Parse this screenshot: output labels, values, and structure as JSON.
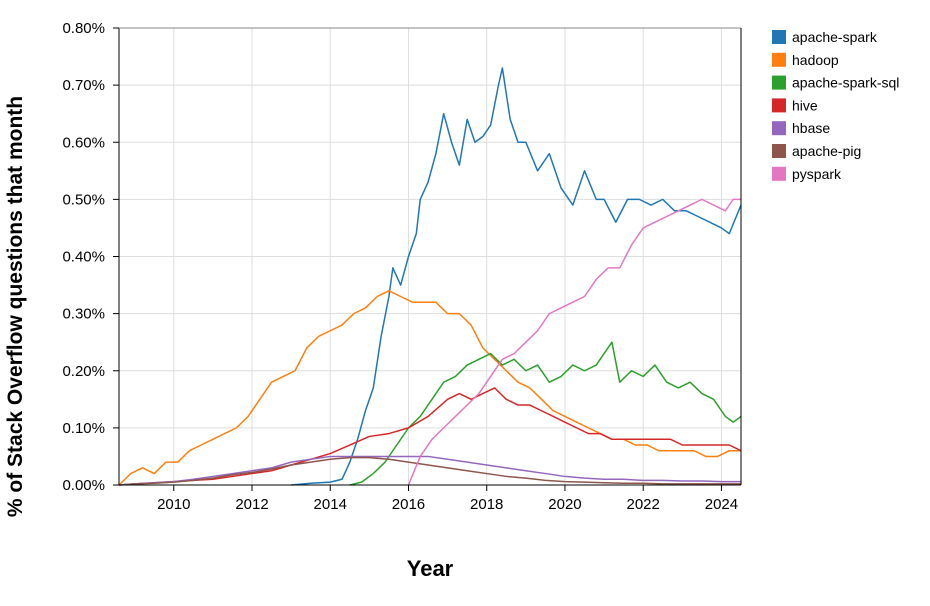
{
  "chart_data": {
    "type": "line",
    "title": "",
    "xlabel": "Year",
    "ylabel": "% of Stack Overflow questions that month",
    "xlim": [
      2008.6,
      2024.5
    ],
    "ylim": [
      0,
      0.8
    ],
    "x_ticks": [
      2010,
      2012,
      2014,
      2016,
      2018,
      2020,
      2022,
      2024
    ],
    "x_tick_labels": [
      "2010",
      "2012",
      "2014",
      "2016",
      "2018",
      "2020",
      "2022",
      "2024"
    ],
    "y_ticks": [
      0,
      0.1,
      0.2,
      0.3,
      0.4,
      0.5,
      0.6,
      0.7,
      0.8
    ],
    "y_tick_labels": [
      "0.00%",
      "0.10%",
      "0.20%",
      "0.30%",
      "0.40%",
      "0.50%",
      "0.60%",
      "0.70%",
      "0.80%"
    ],
    "grid": true,
    "legend_position": "right-outside",
    "series": [
      {
        "name": "apache-spark",
        "color": "#1f77b4",
        "points": [
          [
            2013.0,
            0.0
          ],
          [
            2013.5,
            0.003
          ],
          [
            2014.0,
            0.005
          ],
          [
            2014.3,
            0.01
          ],
          [
            2014.5,
            0.04
          ],
          [
            2014.7,
            0.08
          ],
          [
            2014.9,
            0.13
          ],
          [
            2015.1,
            0.17
          ],
          [
            2015.3,
            0.26
          ],
          [
            2015.5,
            0.33
          ],
          [
            2015.6,
            0.38
          ],
          [
            2015.8,
            0.35
          ],
          [
            2016.0,
            0.4
          ],
          [
            2016.2,
            0.44
          ],
          [
            2016.3,
            0.5
          ],
          [
            2016.5,
            0.53
          ],
          [
            2016.7,
            0.58
          ],
          [
            2016.9,
            0.65
          ],
          [
            2017.1,
            0.6
          ],
          [
            2017.3,
            0.56
          ],
          [
            2017.5,
            0.64
          ],
          [
            2017.7,
            0.6
          ],
          [
            2017.9,
            0.61
          ],
          [
            2018.1,
            0.63
          ],
          [
            2018.3,
            0.7
          ],
          [
            2018.4,
            0.73
          ],
          [
            2018.6,
            0.64
          ],
          [
            2018.8,
            0.6
          ],
          [
            2019.0,
            0.6
          ],
          [
            2019.3,
            0.55
          ],
          [
            2019.6,
            0.58
          ],
          [
            2019.9,
            0.52
          ],
          [
            2020.2,
            0.49
          ],
          [
            2020.5,
            0.55
          ],
          [
            2020.8,
            0.5
          ],
          [
            2021.0,
            0.5
          ],
          [
            2021.3,
            0.46
          ],
          [
            2021.6,
            0.5
          ],
          [
            2021.9,
            0.5
          ],
          [
            2022.2,
            0.49
          ],
          [
            2022.5,
            0.5
          ],
          [
            2022.8,
            0.48
          ],
          [
            2023.1,
            0.48
          ],
          [
            2023.4,
            0.47
          ],
          [
            2023.7,
            0.46
          ],
          [
            2024.0,
            0.45
          ],
          [
            2024.2,
            0.44
          ],
          [
            2024.5,
            0.49
          ]
        ]
      },
      {
        "name": "hadoop",
        "color": "#ff7f0e",
        "points": [
          [
            2008.6,
            0.0
          ],
          [
            2008.9,
            0.02
          ],
          [
            2009.2,
            0.03
          ],
          [
            2009.5,
            0.02
          ],
          [
            2009.8,
            0.04
          ],
          [
            2010.1,
            0.04
          ],
          [
            2010.4,
            0.06
          ],
          [
            2010.7,
            0.07
          ],
          [
            2011.0,
            0.08
          ],
          [
            2011.3,
            0.09
          ],
          [
            2011.6,
            0.1
          ],
          [
            2011.9,
            0.12
          ],
          [
            2012.2,
            0.15
          ],
          [
            2012.5,
            0.18
          ],
          [
            2012.8,
            0.19
          ],
          [
            2013.1,
            0.2
          ],
          [
            2013.4,
            0.24
          ],
          [
            2013.7,
            0.26
          ],
          [
            2014.0,
            0.27
          ],
          [
            2014.3,
            0.28
          ],
          [
            2014.6,
            0.3
          ],
          [
            2014.9,
            0.31
          ],
          [
            2015.2,
            0.33
          ],
          [
            2015.5,
            0.34
          ],
          [
            2015.8,
            0.33
          ],
          [
            2016.1,
            0.32
          ],
          [
            2016.4,
            0.32
          ],
          [
            2016.7,
            0.32
          ],
          [
            2017.0,
            0.3
          ],
          [
            2017.3,
            0.3
          ],
          [
            2017.6,
            0.28
          ],
          [
            2017.9,
            0.24
          ],
          [
            2018.2,
            0.22
          ],
          [
            2018.5,
            0.2
          ],
          [
            2018.8,
            0.18
          ],
          [
            2019.1,
            0.17
          ],
          [
            2019.4,
            0.15
          ],
          [
            2019.7,
            0.13
          ],
          [
            2020.0,
            0.12
          ],
          [
            2020.3,
            0.11
          ],
          [
            2020.6,
            0.1
          ],
          [
            2020.9,
            0.09
          ],
          [
            2021.2,
            0.08
          ],
          [
            2021.5,
            0.08
          ],
          [
            2021.8,
            0.07
          ],
          [
            2022.1,
            0.07
          ],
          [
            2022.4,
            0.06
          ],
          [
            2022.7,
            0.06
          ],
          [
            2023.0,
            0.06
          ],
          [
            2023.3,
            0.06
          ],
          [
            2023.6,
            0.05
          ],
          [
            2023.9,
            0.05
          ],
          [
            2024.2,
            0.06
          ],
          [
            2024.5,
            0.06
          ]
        ]
      },
      {
        "name": "apache-spark-sql",
        "color": "#2ca02c",
        "points": [
          [
            2014.5,
            0.0
          ],
          [
            2014.8,
            0.005
          ],
          [
            2015.1,
            0.02
          ],
          [
            2015.4,
            0.04
          ],
          [
            2015.7,
            0.07
          ],
          [
            2016.0,
            0.1
          ],
          [
            2016.3,
            0.12
          ],
          [
            2016.6,
            0.15
          ],
          [
            2016.9,
            0.18
          ],
          [
            2017.2,
            0.19
          ],
          [
            2017.5,
            0.21
          ],
          [
            2017.8,
            0.22
          ],
          [
            2018.1,
            0.23
          ],
          [
            2018.4,
            0.21
          ],
          [
            2018.7,
            0.22
          ],
          [
            2019.0,
            0.2
          ],
          [
            2019.3,
            0.21
          ],
          [
            2019.6,
            0.18
          ],
          [
            2019.9,
            0.19
          ],
          [
            2020.2,
            0.21
          ],
          [
            2020.5,
            0.2
          ],
          [
            2020.8,
            0.21
          ],
          [
            2021.0,
            0.23
          ],
          [
            2021.2,
            0.25
          ],
          [
            2021.4,
            0.18
          ],
          [
            2021.7,
            0.2
          ],
          [
            2022.0,
            0.19
          ],
          [
            2022.3,
            0.21
          ],
          [
            2022.6,
            0.18
          ],
          [
            2022.9,
            0.17
          ],
          [
            2023.2,
            0.18
          ],
          [
            2023.5,
            0.16
          ],
          [
            2023.8,
            0.15
          ],
          [
            2024.1,
            0.12
          ],
          [
            2024.3,
            0.11
          ],
          [
            2024.5,
            0.12
          ]
        ]
      },
      {
        "name": "hive",
        "color": "#d62728",
        "points": [
          [
            2008.6,
            0.0
          ],
          [
            2009.0,
            0.002
          ],
          [
            2009.5,
            0.004
          ],
          [
            2010.0,
            0.006
          ],
          [
            2010.5,
            0.008
          ],
          [
            2011.0,
            0.01
          ],
          [
            2011.5,
            0.015
          ],
          [
            2012.0,
            0.02
          ],
          [
            2012.5,
            0.025
          ],
          [
            2013.0,
            0.035
          ],
          [
            2013.5,
            0.045
          ],
          [
            2014.0,
            0.055
          ],
          [
            2014.5,
            0.07
          ],
          [
            2015.0,
            0.085
          ],
          [
            2015.5,
            0.09
          ],
          [
            2016.0,
            0.1
          ],
          [
            2016.5,
            0.12
          ],
          [
            2017.0,
            0.15
          ],
          [
            2017.3,
            0.16
          ],
          [
            2017.6,
            0.15
          ],
          [
            2017.9,
            0.16
          ],
          [
            2018.2,
            0.17
          ],
          [
            2018.5,
            0.15
          ],
          [
            2018.8,
            0.14
          ],
          [
            2019.1,
            0.14
          ],
          [
            2019.4,
            0.13
          ],
          [
            2019.7,
            0.12
          ],
          [
            2020.0,
            0.11
          ],
          [
            2020.3,
            0.1
          ],
          [
            2020.6,
            0.09
          ],
          [
            2020.9,
            0.09
          ],
          [
            2021.2,
            0.08
          ],
          [
            2021.5,
            0.08
          ],
          [
            2021.8,
            0.08
          ],
          [
            2022.1,
            0.08
          ],
          [
            2022.4,
            0.08
          ],
          [
            2022.7,
            0.08
          ],
          [
            2023.0,
            0.07
          ],
          [
            2023.3,
            0.07
          ],
          [
            2023.6,
            0.07
          ],
          [
            2023.9,
            0.07
          ],
          [
            2024.2,
            0.07
          ],
          [
            2024.5,
            0.06
          ]
        ]
      },
      {
        "name": "hbase",
        "color": "#9467bd",
        "points": [
          [
            2008.6,
            0.0
          ],
          [
            2009.0,
            0.002
          ],
          [
            2009.5,
            0.004
          ],
          [
            2010.0,
            0.006
          ],
          [
            2010.5,
            0.01
          ],
          [
            2011.0,
            0.015
          ],
          [
            2011.5,
            0.02
          ],
          [
            2012.0,
            0.025
          ],
          [
            2012.5,
            0.03
          ],
          [
            2013.0,
            0.04
          ],
          [
            2013.5,
            0.045
          ],
          [
            2014.0,
            0.05
          ],
          [
            2014.5,
            0.05
          ],
          [
            2015.0,
            0.05
          ],
          [
            2015.5,
            0.05
          ],
          [
            2016.0,
            0.05
          ],
          [
            2016.5,
            0.05
          ],
          [
            2017.0,
            0.045
          ],
          [
            2017.5,
            0.04
          ],
          [
            2018.0,
            0.035
          ],
          [
            2018.5,
            0.03
          ],
          [
            2019.0,
            0.025
          ],
          [
            2019.5,
            0.02
          ],
          [
            2020.0,
            0.015
          ],
          [
            2020.5,
            0.012
          ],
          [
            2021.0,
            0.01
          ],
          [
            2021.5,
            0.01
          ],
          [
            2022.0,
            0.008
          ],
          [
            2022.5,
            0.008
          ],
          [
            2023.0,
            0.007
          ],
          [
            2023.5,
            0.007
          ],
          [
            2024.0,
            0.006
          ],
          [
            2024.5,
            0.006
          ]
        ]
      },
      {
        "name": "apache-pig",
        "color": "#8c564b",
        "points": [
          [
            2008.6,
            0.0
          ],
          [
            2009.0,
            0.002
          ],
          [
            2009.5,
            0.003
          ],
          [
            2010.0,
            0.005
          ],
          [
            2010.5,
            0.008
          ],
          [
            2011.0,
            0.012
          ],
          [
            2011.5,
            0.018
          ],
          [
            2012.0,
            0.022
          ],
          [
            2012.5,
            0.028
          ],
          [
            2013.0,
            0.035
          ],
          [
            2013.5,
            0.04
          ],
          [
            2014.0,
            0.045
          ],
          [
            2014.5,
            0.048
          ],
          [
            2015.0,
            0.048
          ],
          [
            2015.5,
            0.045
          ],
          [
            2016.0,
            0.04
          ],
          [
            2016.5,
            0.035
          ],
          [
            2017.0,
            0.03
          ],
          [
            2017.5,
            0.025
          ],
          [
            2018.0,
            0.02
          ],
          [
            2018.5,
            0.015
          ],
          [
            2019.0,
            0.012
          ],
          [
            2019.5,
            0.008
          ],
          [
            2020.0,
            0.006
          ],
          [
            2020.5,
            0.005
          ],
          [
            2021.0,
            0.004
          ],
          [
            2021.5,
            0.003
          ],
          [
            2022.0,
            0.003
          ],
          [
            2022.5,
            0.002
          ],
          [
            2023.0,
            0.002
          ],
          [
            2023.5,
            0.002
          ],
          [
            2024.0,
            0.002
          ],
          [
            2024.5,
            0.002
          ]
        ]
      },
      {
        "name": "pyspark",
        "color": "#e377c2",
        "points": [
          [
            2016.0,
            0.0
          ],
          [
            2016.3,
            0.05
          ],
          [
            2016.6,
            0.08
          ],
          [
            2016.9,
            0.1
          ],
          [
            2017.2,
            0.12
          ],
          [
            2017.5,
            0.14
          ],
          [
            2017.8,
            0.16
          ],
          [
            2018.1,
            0.19
          ],
          [
            2018.4,
            0.22
          ],
          [
            2018.7,
            0.23
          ],
          [
            2019.0,
            0.25
          ],
          [
            2019.3,
            0.27
          ],
          [
            2019.6,
            0.3
          ],
          [
            2019.9,
            0.31
          ],
          [
            2020.2,
            0.32
          ],
          [
            2020.5,
            0.33
          ],
          [
            2020.8,
            0.36
          ],
          [
            2021.1,
            0.38
          ],
          [
            2021.4,
            0.38
          ],
          [
            2021.7,
            0.42
          ],
          [
            2022.0,
            0.45
          ],
          [
            2022.3,
            0.46
          ],
          [
            2022.6,
            0.47
          ],
          [
            2022.9,
            0.48
          ],
          [
            2023.2,
            0.49
          ],
          [
            2023.5,
            0.5
          ],
          [
            2023.8,
            0.49
          ],
          [
            2024.1,
            0.48
          ],
          [
            2024.3,
            0.5
          ],
          [
            2024.5,
            0.5
          ]
        ]
      }
    ]
  }
}
